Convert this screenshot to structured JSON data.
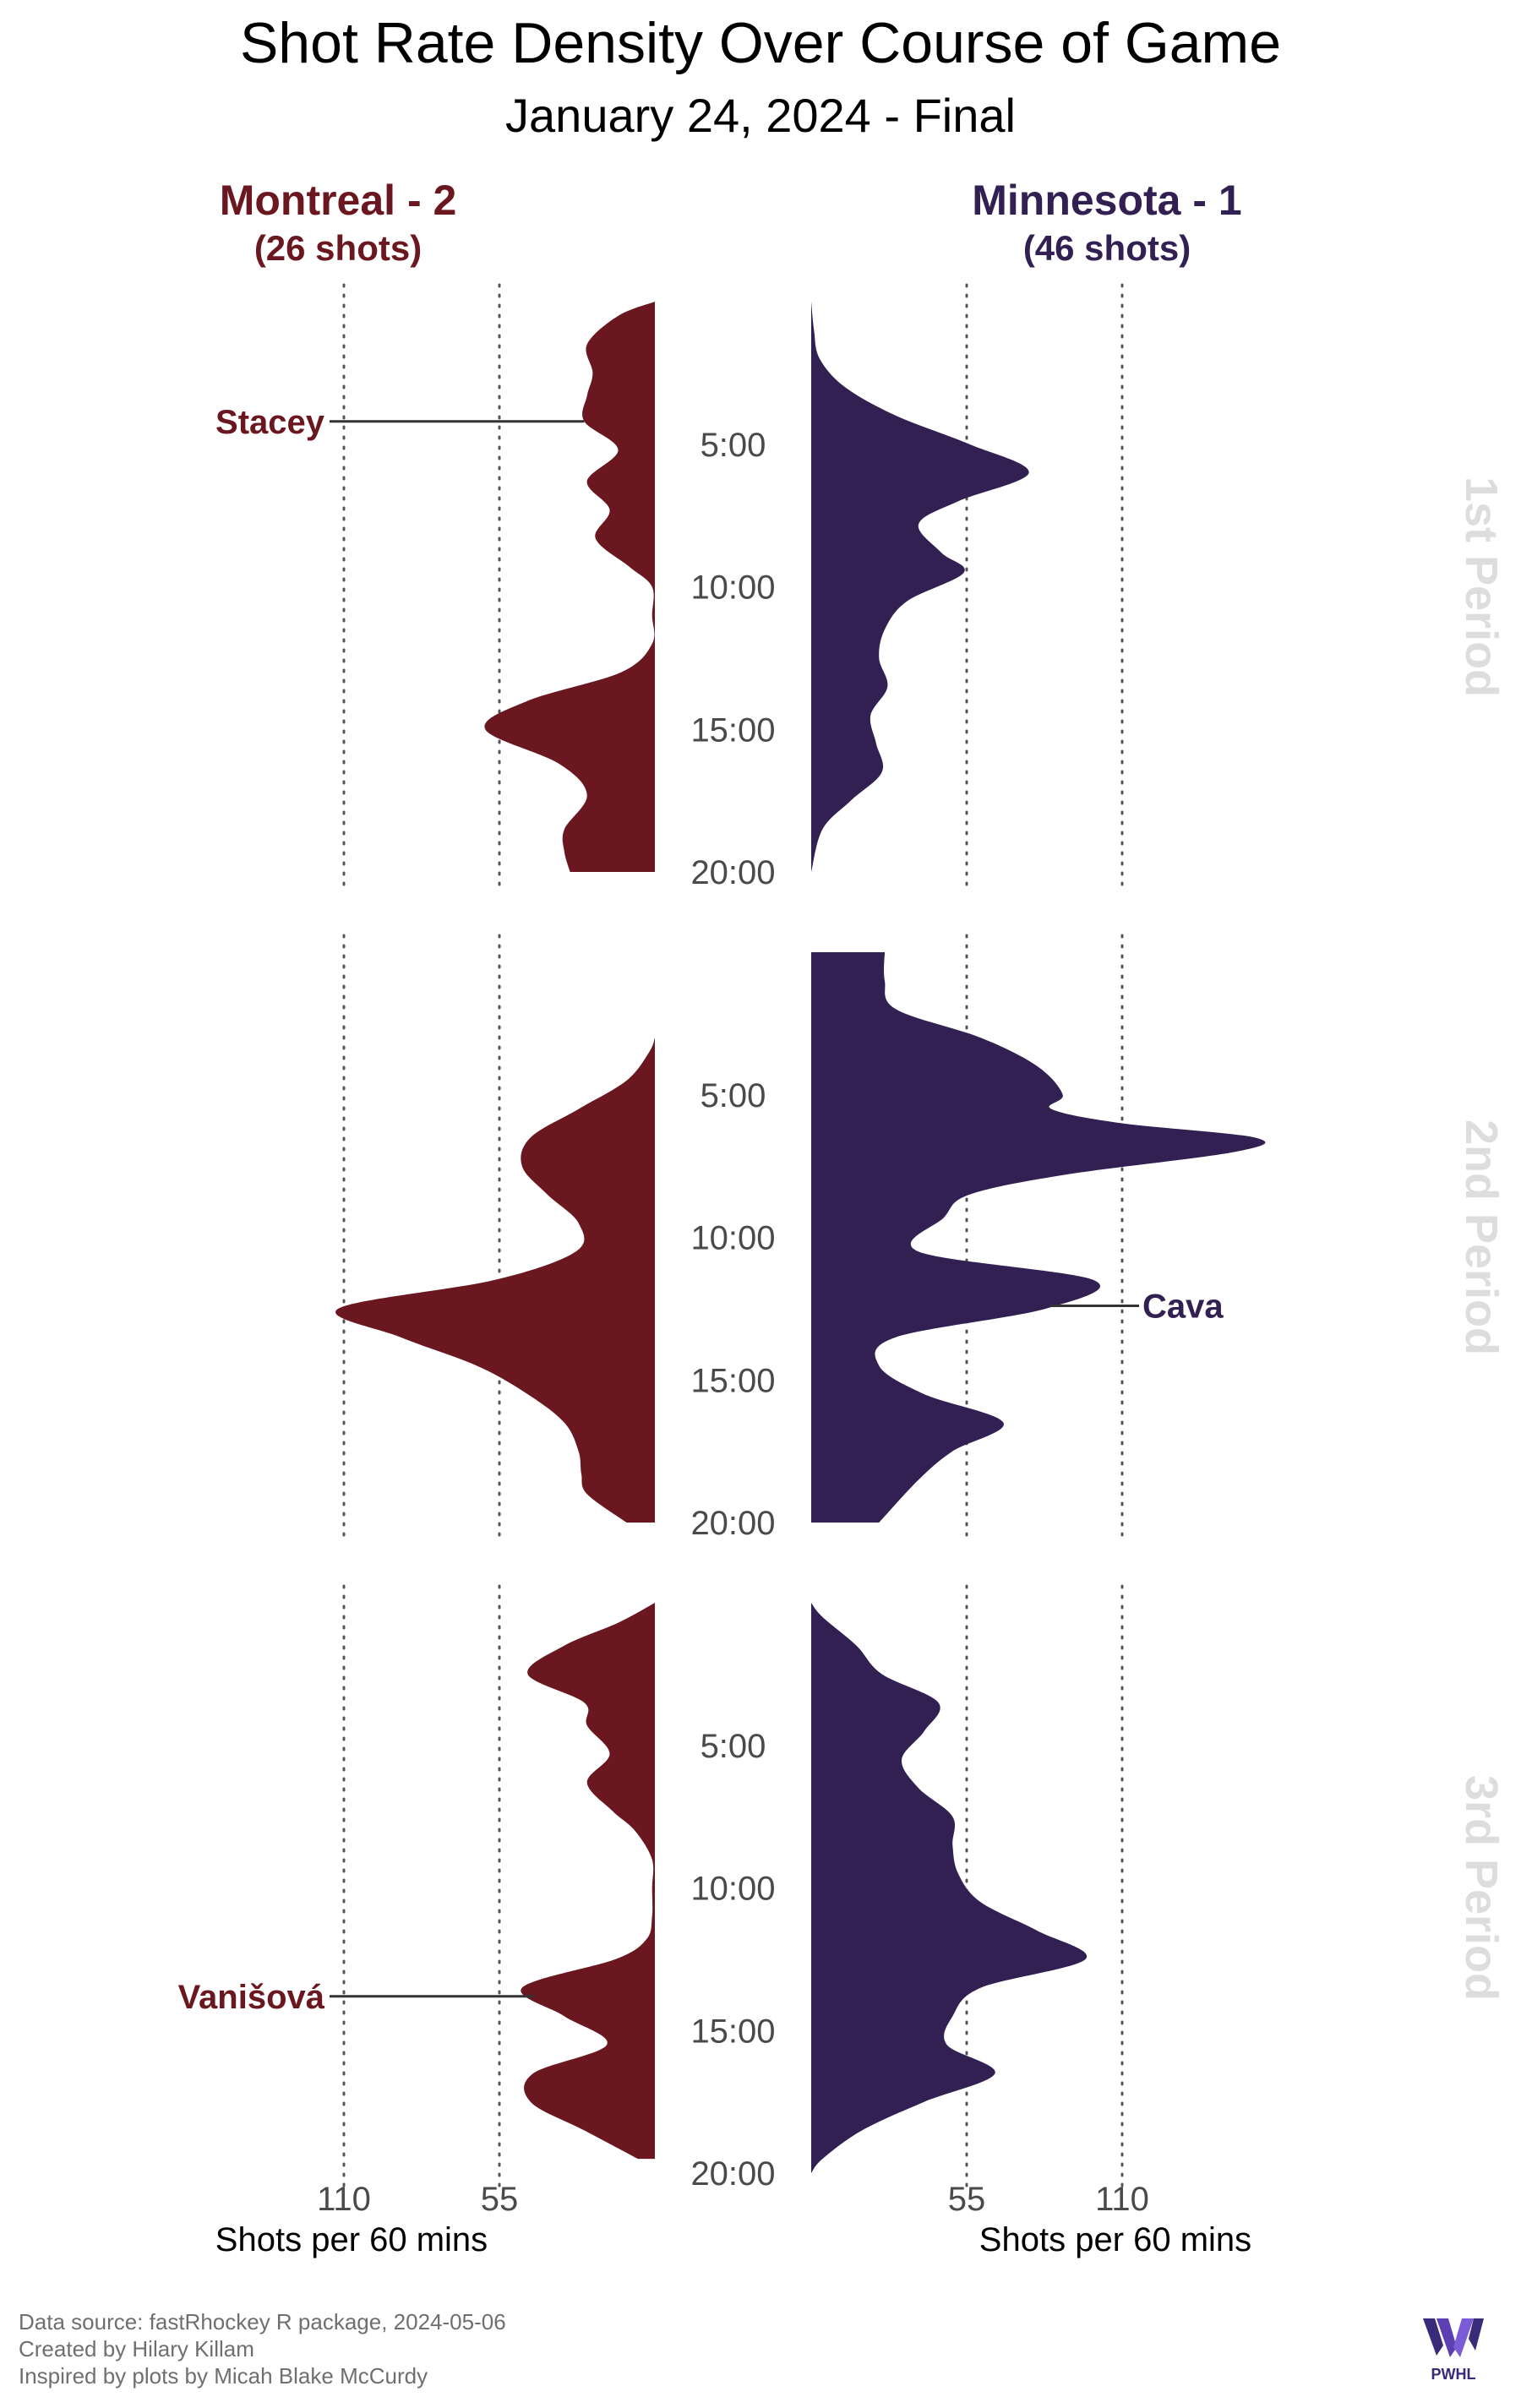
{
  "title": "Shot Rate Density Over Course of Game",
  "subtitle": "January 24, 2024 - Final",
  "teams": {
    "home": {
      "label": "Montreal - 2",
      "shots_label": "(26 shots)",
      "color": "#6b1720"
    },
    "away": {
      "label": "Minnesota - 1",
      "shots_label": "(46 shots)",
      "color": "#332053"
    }
  },
  "footer": {
    "line1": "Data source: fastRhockey R package, 2024-05-06",
    "line2": "Created by Hilary Killam",
    "line3": "Inspired by plots by Micah Blake McCurdy"
  },
  "logo": {
    "text": "PWHL",
    "icon": "pwhl-logo"
  },
  "chart_data": {
    "type": "area",
    "orientation": "mirrored-vertical",
    "time_ticks": [
      "5:00",
      "10:00",
      "15:00",
      "20:00"
    ],
    "time_range_minutes": [
      0,
      20
    ],
    "x_label_left": "Shots per 60 mins",
    "x_label_right": "Shots per 60 mins",
    "x_ticks_left": [
      110,
      55
    ],
    "x_ticks_right": [
      55,
      110
    ],
    "gridlines": [
      55,
      110
    ],
    "periods": [
      {
        "label": "1st Period",
        "montreal": {
          "t": [
            0,
            0.5,
            1.5,
            2.5,
            3.3,
            4.2,
            5.2,
            6.3,
            7.3,
            8.3,
            9.3,
            10,
            11,
            12,
            13,
            14,
            15,
            16.2,
            17.3,
            18.5,
            19.3,
            20
          ],
          "rate": [
            0,
            13,
            24,
            22,
            24,
            25,
            13,
            24,
            16,
            21,
            9,
            1,
            1,
            1,
            12,
            45,
            60,
            34,
            24,
            32,
            32,
            30
          ]
        },
        "minnesota": {
          "t": [
            0,
            1,
            2,
            3,
            4,
            5,
            6,
            7,
            7.8,
            8.8,
            9.5,
            10.5,
            11.5,
            12.5,
            13.5,
            14.5,
            15.5,
            16.5,
            17.5,
            18.5,
            20
          ],
          "rate": [
            0,
            1,
            3,
            12,
            30,
            56,
            77,
            52,
            38,
            46,
            54,
            34,
            26,
            24,
            27,
            21,
            23,
            25,
            14,
            4,
            0
          ]
        }
      },
      {
        "label": "2nd Period",
        "montreal": {
          "t": [
            3.0,
            3.5,
            4.5,
            5.5,
            6.5,
            7.5,
            8.5,
            9.5,
            10.5,
            11.5,
            12.5,
            13.5,
            14.5,
            15.5,
            16.5,
            17.5,
            18.3,
            19,
            20
          ],
          "rate": [
            0,
            2,
            10,
            27,
            44,
            47,
            38,
            27,
            28,
            57,
            112,
            90,
            63,
            45,
            32,
            27,
            26,
            24,
            10
          ]
        },
        "minnesota": {
          "t": [
            0,
            1,
            2,
            3,
            4,
            5,
            5.5,
            6,
            6.5,
            7,
            7.8,
            8.5,
            9.3,
            10.5,
            11.5,
            12.5,
            13.5,
            14.5,
            15.5,
            16.5,
            17.5,
            18.5,
            20
          ],
          "rate": [
            26,
            26,
            30,
            60,
            80,
            89,
            85,
            110,
            157,
            150,
            90,
            56,
            47,
            38,
            100,
            83,
            30,
            24,
            40,
            68,
            50,
            38,
            24
          ]
        }
      },
      {
        "label": "3rd Period",
        "montreal": {
          "t": [
            0,
            0.7,
            1.5,
            2.5,
            3.5,
            4.3,
            5.3,
            6.3,
            7.3,
            8,
            9,
            10,
            11,
            11.8,
            12.5,
            13.5,
            14.5,
            15.5,
            16.5,
            17.5,
            18.5,
            19.5
          ],
          "rate": [
            0,
            13,
            32,
            45,
            25,
            24,
            16,
            24,
            15,
            7,
            1,
            1,
            1,
            3,
            14,
            47,
            32,
            17,
            43,
            44,
            25,
            6
          ]
        },
        "minnesota": {
          "t": [
            0,
            0.5,
            1.5,
            2.5,
            3.5,
            4.5,
            5.5,
            6.5,
            7.5,
            8.5,
            9.5,
            10.5,
            11.5,
            12.5,
            13.5,
            14.5,
            15.5,
            16.5,
            17.5,
            18.5,
            19.5,
            20
          ],
          "rate": [
            0,
            4,
            16,
            25,
            45,
            40,
            32,
            38,
            50,
            50,
            52,
            60,
            80,
            97,
            60,
            50,
            48,
            65,
            40,
            18,
            4,
            0
          ]
        }
      }
    ],
    "annotations": [
      {
        "text": "Stacey",
        "team": "montreal",
        "period": 1,
        "time_minutes": 4.2
      },
      {
        "text": "Cava",
        "team": "minnesota",
        "period": 2,
        "time_minutes": 12.4
      },
      {
        "text": "Vanišová",
        "team": "montreal",
        "period": 3,
        "time_minutes": 13.8
      }
    ]
  }
}
